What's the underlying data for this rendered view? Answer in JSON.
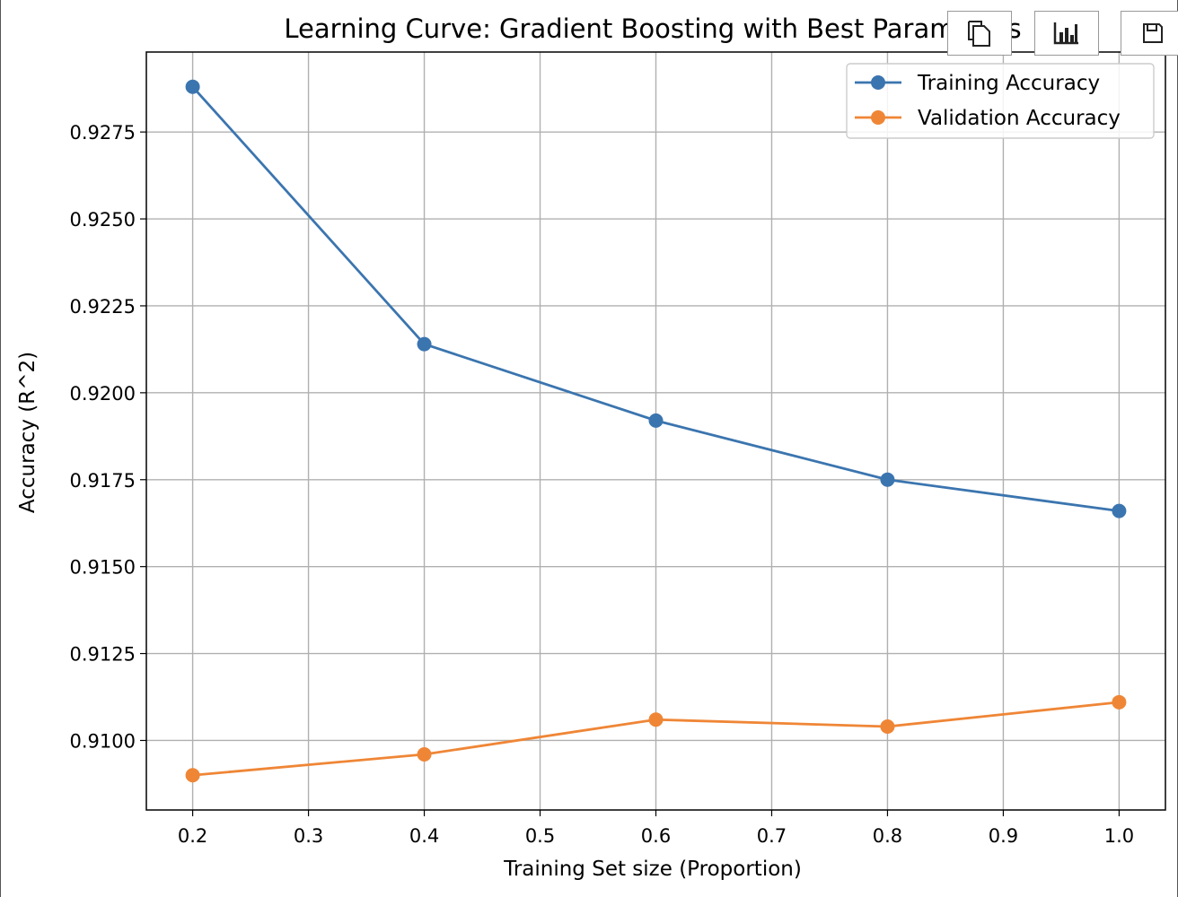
{
  "chart_data": {
    "type": "line",
    "title": "Learning Curve: Gradient Boosting with Best Parameters",
    "xlabel": "Training Set size (Proportion)",
    "ylabel": "Accuracy (R^2)",
    "x": [
      0.2,
      0.4,
      0.6,
      0.8,
      1.0
    ],
    "xlim": [
      0.16,
      1.04
    ],
    "ylim": [
      0.908,
      0.9298
    ],
    "xticks": [
      "0.2",
      "0.3",
      "0.4",
      "0.5",
      "0.6",
      "0.7",
      "0.8",
      "0.9",
      "1.0"
    ],
    "yticks": [
      "0.9100",
      "0.9125",
      "0.9150",
      "0.9175",
      "0.9200",
      "0.9225",
      "0.9250",
      "0.9275"
    ],
    "grid": true,
    "legend_position": "top-right",
    "series": [
      {
        "name": "Training Accuracy",
        "color": "#3b75af",
        "values": [
          0.9288,
          0.9214,
          0.9192,
          0.9175,
          0.9166
        ]
      },
      {
        "name": "Validation Accuracy",
        "color": "#ef8636",
        "values": [
          0.909,
          0.9096,
          0.9106,
          0.9104,
          0.9111
        ]
      }
    ]
  },
  "toolbar": {
    "copy_icon": "copy-icon",
    "chart_icon": "bar-chart-icon",
    "save_icon": "save-icon"
  }
}
